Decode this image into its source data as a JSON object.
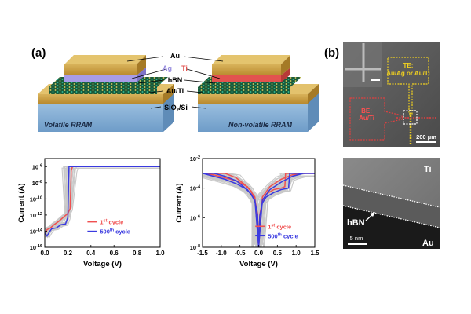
{
  "panel_a_label": "(a)",
  "panel_b_label": "(b)",
  "schematic": {
    "layers": {
      "au": "Au",
      "ag": "Ag",
      "ti": "Ti",
      "hbn": "hBN",
      "auti": "Au/Ti",
      "sio2_prefix": "SiO",
      "sio2_sub": "2",
      "sio2_suffix": "/Si"
    },
    "left_device_label": "Volatile RRAM",
    "right_device_label": "Non-volatile RRAM",
    "colors": {
      "ag": "#9a8fe0",
      "ti": "#e2524f"
    }
  },
  "sem": {
    "te_label_line1": "TE:",
    "te_label_line2": "Au/Ag or Au/Ti",
    "be_label_line1": "BE:",
    "be_label_line2": "Au/Ti",
    "scale_label": "200 μm"
  },
  "tem": {
    "top_label": "Ti",
    "bottom_label": "Au",
    "hbn_label": "hBN",
    "scale_label": "5 nm"
  },
  "chart_data": [
    {
      "type": "line",
      "name": "volatile-iv",
      "xlabel": "Voltage (V)",
      "ylabel": "Current (A)",
      "xlim": [
        0,
        1.0
      ],
      "ylim_exp": [
        -16,
        -5
      ],
      "yscale": "log",
      "x_ticks": [
        "0.0",
        "0.2",
        "0.4",
        "0.6",
        "0.8",
        "1.0"
      ],
      "y_ticks": [
        {
          "base": "10",
          "exp": "-6"
        },
        {
          "base": "10",
          "exp": "-8"
        },
        {
          "base": "10",
          "exp": "-10"
        },
        {
          "base": "10",
          "exp": "-12"
        },
        {
          "base": "10",
          "exp": "-14"
        },
        {
          "base": "10",
          "exp": "-16"
        }
      ],
      "legend": [
        {
          "label_main": "1",
          "label_sup": "st",
          "label_rest": " cycle",
          "color": "#f05050"
        },
        {
          "label_main": "500",
          "label_sup": "th",
          "label_rest": " cycle",
          "color": "#3a3ae0"
        }
      ],
      "compliance_exp": -6,
      "series": [
        {
          "name": "1st cycle",
          "x": [
            0.0,
            0.02,
            0.05,
            0.08,
            0.12,
            0.16,
            0.2,
            0.22,
            0.23,
            0.24,
            0.3,
            0.5,
            0.8,
            1.0
          ],
          "y_exp": [
            -14.5,
            -13.8,
            -13.6,
            -13.2,
            -12.8,
            -12.3,
            -11.8,
            -11.2,
            -6.5,
            -6.0,
            -6.0,
            -6.0,
            -6.0,
            -6.0
          ]
        },
        {
          "name": "500th cycle",
          "x": [
            0.0,
            0.02,
            0.04,
            0.06,
            0.1,
            0.14,
            0.18,
            0.2,
            0.21,
            0.3,
            0.6,
            1.0
          ],
          "y_exp": [
            -14.2,
            -14.6,
            -14.1,
            -13.7,
            -13.6,
            -13.2,
            -13.1,
            -12.3,
            -6.0,
            -6.0,
            -6.0,
            -6.0
          ]
        }
      ]
    },
    {
      "type": "line",
      "name": "nonvolatile-iv",
      "xlabel": "Voltage (V)",
      "ylabel": "Current (A)",
      "xlim": [
        -1.5,
        1.5
      ],
      "ylim_exp": [
        -8,
        -2
      ],
      "yscale": "log",
      "x_ticks": [
        "-1.5",
        "-1.0",
        "-0.5",
        "0.0",
        "0.5",
        "1.0",
        "1.5"
      ],
      "y_ticks": [
        {
          "base": "10",
          "exp": "-2"
        },
        {
          "base": "10",
          "exp": "-4"
        },
        {
          "base": "10",
          "exp": "-6"
        },
        {
          "base": "10",
          "exp": "-8"
        }
      ],
      "legend": [
        {
          "label_main": "1",
          "label_sup": "st",
          "label_rest": " cycle",
          "color": "#f05050"
        },
        {
          "label_main": "500",
          "label_sup": "th",
          "label_rest": " cycle",
          "color": "#3a3ae0"
        }
      ],
      "compliance_exp": -3,
      "series": [
        {
          "name": "1st cycle",
          "x": [
            -1.5,
            -1.2,
            -0.9,
            -0.6,
            -0.4,
            -0.2,
            -0.1,
            -0.03,
            0.0,
            0.03,
            0.1,
            0.2,
            0.4,
            0.6,
            0.7,
            0.72,
            0.9,
            1.2,
            1.5
          ],
          "y_exp": [
            -3.0,
            -3.0,
            -3.0,
            -3.3,
            -3.7,
            -4.2,
            -4.8,
            -5.7,
            -8.0,
            -5.8,
            -4.9,
            -4.4,
            -4.1,
            -4.0,
            -3.9,
            -3.0,
            -3.0,
            -3.0,
            -3.0
          ]
        },
        {
          "name": "1st cycle return",
          "x": [
            -1.5,
            -1.2,
            -0.9,
            -0.6,
            -0.3,
            -0.1,
            0.0,
            0.1,
            0.3,
            0.6,
            0.9,
            1.2,
            1.5
          ],
          "y_exp": [
            -3.0,
            -3.1,
            -3.3,
            -3.5,
            -3.9,
            -4.6,
            -8.0,
            -4.6,
            -3.9,
            -3.4,
            -3.1,
            -3.0,
            -3.0
          ]
        },
        {
          "name": "500th cycle",
          "x": [
            -1.5,
            -1.2,
            -0.9,
            -0.6,
            -0.4,
            -0.2,
            -0.1,
            -0.03,
            0.0,
            0.03,
            0.1,
            0.2,
            0.4,
            0.6,
            0.8,
            0.83,
            1.0,
            1.2,
            1.5
          ],
          "y_exp": [
            -3.0,
            -3.0,
            -3.2,
            -3.5,
            -3.9,
            -4.4,
            -4.9,
            -5.8,
            -8.0,
            -5.9,
            -5.0,
            -4.6,
            -4.3,
            -4.1,
            -4.0,
            -3.0,
            -3.0,
            -3.0,
            -3.0
          ]
        },
        {
          "name": "500th cycle return",
          "x": [
            -1.5,
            -1.2,
            -0.9,
            -0.6,
            -0.3,
            -0.1,
            0.0,
            0.1,
            0.3,
            0.6,
            0.9,
            1.2,
            1.5
          ],
          "y_exp": [
            -3.0,
            -3.2,
            -3.4,
            -3.7,
            -4.1,
            -4.8,
            -8.0,
            -4.8,
            -4.1,
            -3.6,
            -3.2,
            -3.0,
            -3.0
          ]
        }
      ]
    }
  ]
}
